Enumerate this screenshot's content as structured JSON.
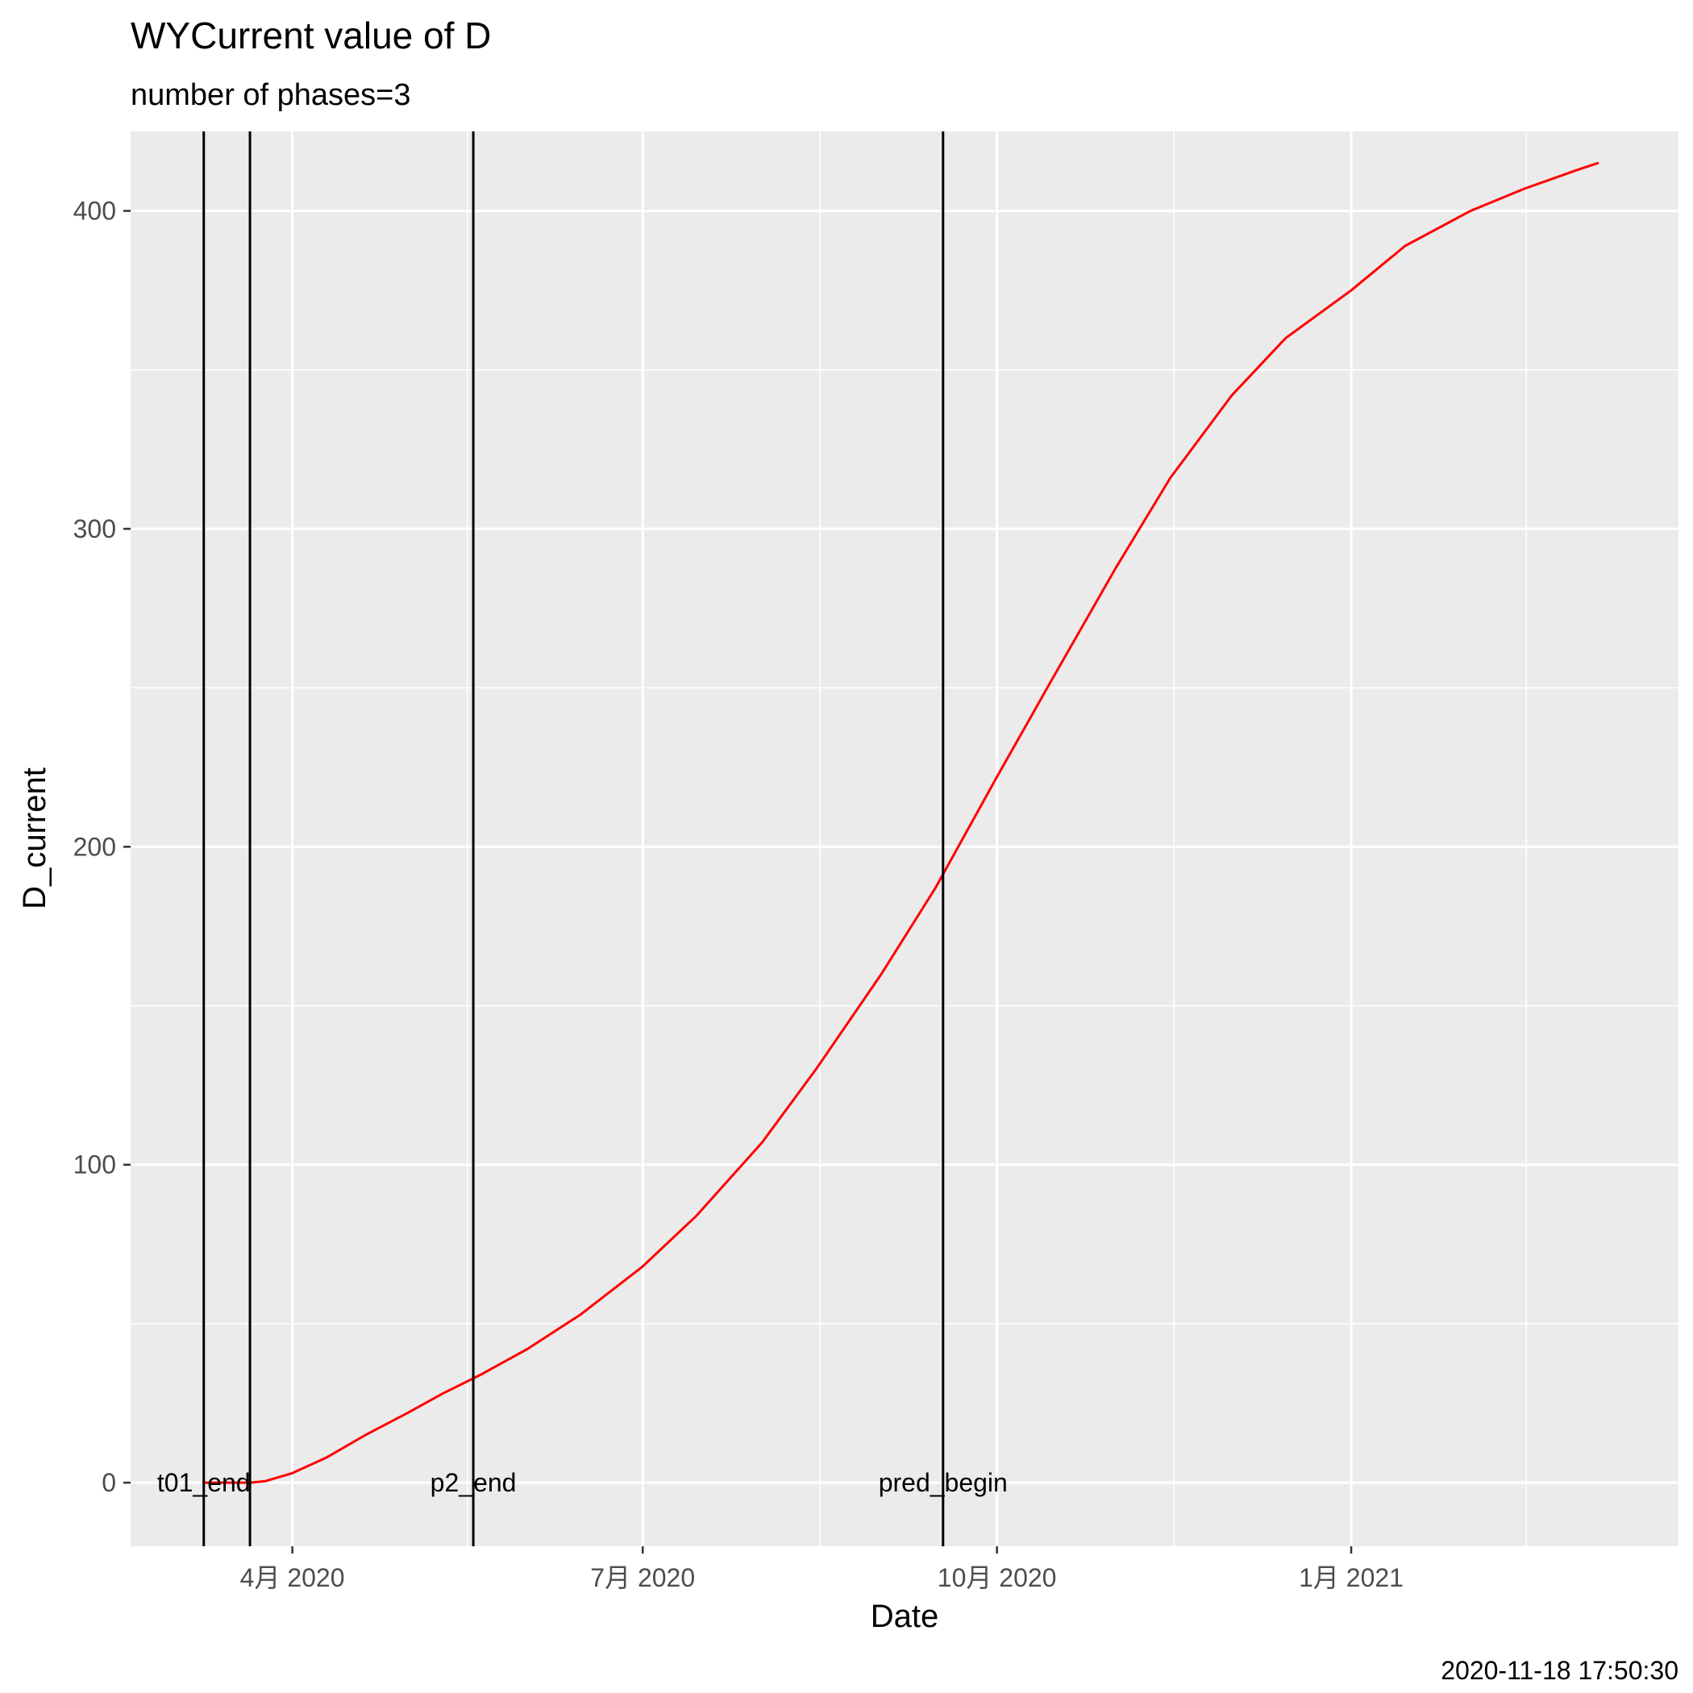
{
  "chart_data": {
    "type": "line",
    "title": "WYCurrent value of D",
    "subtitle": "number of phases=3",
    "xlabel": "Date",
    "ylabel": "D_current",
    "caption": "2020-11-18 17:50:30",
    "xlim": [
      "2020-02-19",
      "2021-03-27"
    ],
    "ylim": [
      -20,
      425
    ],
    "x_ticks": [
      {
        "date": "2020-04-01",
        "label": "4月 2020"
      },
      {
        "date": "2020-07-01",
        "label": "7月 2020"
      },
      {
        "date": "2020-10-01",
        "label": "10月 2020"
      },
      {
        "date": "2021-01-01",
        "label": "1月 2021"
      }
    ],
    "y_ticks": [
      0,
      100,
      200,
      300,
      400
    ],
    "grid": true,
    "series": [
      {
        "color": "#ff0000",
        "points": [
          {
            "x": "2020-03-09",
            "y": 0
          },
          {
            "x": "2020-03-21",
            "y": 0
          },
          {
            "x": "2020-03-25",
            "y": 0.5
          },
          {
            "x": "2020-04-01",
            "y": 3
          },
          {
            "x": "2020-04-10",
            "y": 8
          },
          {
            "x": "2020-04-20",
            "y": 15
          },
          {
            "x": "2020-05-01",
            "y": 22
          },
          {
            "x": "2020-05-10",
            "y": 28
          },
          {
            "x": "2020-05-20",
            "y": 34
          },
          {
            "x": "2020-06-01",
            "y": 42
          },
          {
            "x": "2020-06-15",
            "y": 53
          },
          {
            "x": "2020-07-01",
            "y": 68
          },
          {
            "x": "2020-07-15",
            "y": 84
          },
          {
            "x": "2020-08-01",
            "y": 107
          },
          {
            "x": "2020-08-15",
            "y": 130
          },
          {
            "x": "2020-09-01",
            "y": 160
          },
          {
            "x": "2020-09-15",
            "y": 187
          },
          {
            "x": "2020-10-01",
            "y": 222
          },
          {
            "x": "2020-10-15",
            "y": 252
          },
          {
            "x": "2020-11-01",
            "y": 288
          },
          {
            "x": "2020-11-15",
            "y": 316
          },
          {
            "x": "2020-12-01",
            "y": 342
          },
          {
            "x": "2020-12-15",
            "y": 360
          },
          {
            "x": "2021-01-01",
            "y": 375
          },
          {
            "x": "2021-01-15",
            "y": 389
          },
          {
            "x": "2021-02-01",
            "y": 400
          },
          {
            "x": "2021-02-15",
            "y": 407
          },
          {
            "x": "2021-03-01",
            "y": 413
          },
          {
            "x": "2021-03-06",
            "y": 415
          }
        ]
      }
    ],
    "vlines": [
      {
        "date": "2020-03-09",
        "label": "t01_end"
      },
      {
        "date": "2020-03-21",
        "label": ""
      },
      {
        "date": "2020-05-18",
        "label": "p2_end"
      },
      {
        "date": "2020-09-17",
        "label": "pred_begin"
      }
    ]
  }
}
